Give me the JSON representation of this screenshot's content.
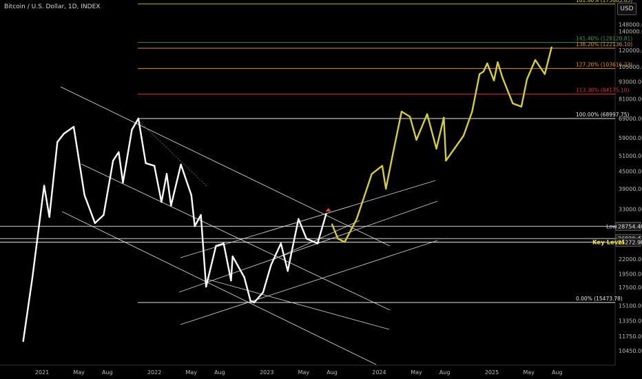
{
  "header": {
    "title": "Bitcoin / U.S. Dollar, 1D, INDEX",
    "currency": "USD"
  },
  "chart_data": {
    "type": "line",
    "title": "Bitcoin / U.S. Dollar, 1D, INDEX",
    "y_scale": "log",
    "ylim": [
      9600,
      182000
    ],
    "y_ticks": [
      "148000.00",
      "140000.00",
      "120000.00",
      "105000.00",
      "93000.00",
      "81000.00",
      "69000.00",
      "59000.00",
      "51000.00",
      "45000.00",
      "39000.00",
      "33000.00",
      "22000.00",
      "19500.00",
      "17500.00",
      "15100.00",
      "13350.00",
      "11750.00",
      "10450.00"
    ],
    "x_ticks": [
      "2021",
      "May",
      "Aug",
      "2022",
      "May",
      "Aug",
      "2023",
      "May",
      "Aug",
      "2024",
      "May",
      "Aug",
      "2025",
      "May",
      "Aug"
    ],
    "series": [
      {
        "color": "#ffffff",
        "x": [
          "2020-11-01",
          "2020-12-01",
          "2021-01-08",
          "2021-01-25",
          "2021-02-20",
          "2021-03-13",
          "2021-04-14",
          "2021-05-19",
          "2021-06-22",
          "2021-07-20",
          "2021-08-20",
          "2021-09-07",
          "2021-09-21",
          "2021-10-20",
          "2021-11-10",
          "2021-12-04",
          "2022-01-01",
          "2022-01-24",
          "2022-02-10",
          "2022-02-24",
          "2022-03-28",
          "2022-05-01",
          "2022-05-12",
          "2022-06-01",
          "2022-06-18",
          "2022-07-20",
          "2022-08-14",
          "2022-09-07",
          "2022-09-12",
          "2022-10-20",
          "2022-11-09",
          "2022-11-21",
          "2022-12-20",
          "2023-01-15",
          "2023-02-16",
          "2023-03-10",
          "2023-04-14",
          "2023-05-10",
          "2023-06-15",
          "2023-07-13"
        ],
        "y": [
          11300,
          19000,
          40000,
          31000,
          57000,
          61000,
          64500,
          37000,
          29500,
          31500,
          49000,
          52500,
          41000,
          63000,
          68997.75,
          48000,
          47000,
          35000,
          44000,
          34000,
          47500,
          37000,
          28754.4,
          31500,
          17600,
          24500,
          25000,
          18500,
          22500,
          19000,
          15700,
          15473.78,
          16800,
          21000,
          25000,
          20000,
          30500,
          26000,
          25000,
          31800
        ]
      },
      {
        "color": "#d6cf3a",
        "x": [
          "2023-08-01",
          "2023-08-20",
          "2023-09-11",
          "2023-10-20",
          "2023-11-15",
          "2023-12-08",
          "2024-01-11",
          "2024-01-23",
          "2024-02-15",
          "2024-03-14",
          "2024-04-10",
          "2024-05-01",
          "2024-06-05",
          "2024-07-05",
          "2024-07-29",
          "2024-08-05",
          "2024-10-01",
          "2024-10-29",
          "2024-11-22",
          "2024-12-05",
          "2024-12-17",
          "2025-01-08",
          "2025-01-20",
          "2025-02-05",
          "2025-03-10",
          "2025-04-07",
          "2025-04-25",
          "2025-05-22",
          "2025-06-22",
          "2025-07-14"
        ],
        "y": [
          29200,
          26000,
          25300,
          30500,
          37000,
          44000,
          47000,
          39000,
          52000,
          73000,
          70000,
          58000,
          71500,
          54000,
          69500,
          49000,
          60000,
          73000,
          99000,
          101000,
          108000,
          94000,
          109000,
          96000,
          78000,
          76000,
          95000,
          111000,
          99000,
          123000
        ]
      }
    ],
    "levels": [
      {
        "label": "161.80% (175005.85)",
        "value": 175005.85,
        "color": "#d4cc3c"
      },
      {
        "label": "141.40% (128120.81)",
        "value": 128120.81,
        "color": "#3c9a52"
      },
      {
        "label": "138.20% (122136.10)",
        "value": 122136.1,
        "color": "#d8914a"
      },
      {
        "label": "127.20% (103616.23)",
        "value": 103616.23,
        "color": "#e0912c"
      },
      {
        "label": "113.30% (84175.10)",
        "value": 84175.1,
        "color": "#d03a3a"
      },
      {
        "label": "100.00% (68997.75)",
        "value": 68997.75,
        "color": "#e8e8e8"
      },
      {
        "label": "0.00% (15473.78)",
        "value": 15473.78,
        "color": "#e8e8e8"
      }
    ],
    "horizontal_lines": [
      {
        "name": "Low",
        "value": 28754.4,
        "price_label": "28754.40"
      },
      {
        "name": "",
        "value": 26020.47,
        "price_label": "26020.47"
      },
      {
        "name": "Key Level",
        "value": 25272.9,
        "price_label": "25272.90"
      }
    ],
    "annotation": {
      "type": "marker",
      "x": "2023-07-20",
      "y": 32800,
      "color": "#e04545"
    }
  }
}
